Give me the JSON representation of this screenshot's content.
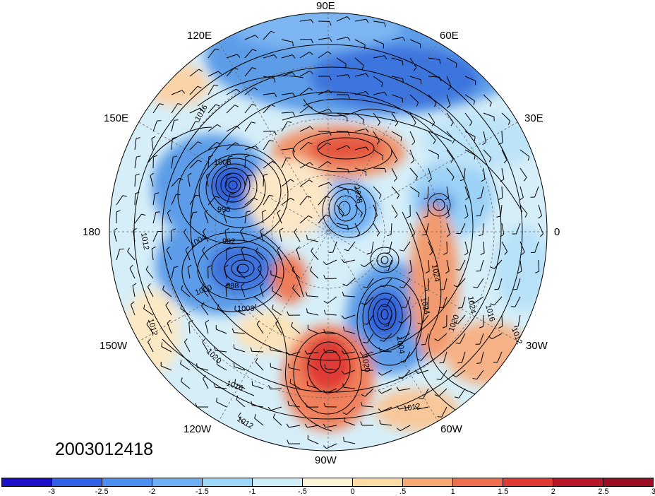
{
  "map": {
    "projection": "north-polar-stereographic",
    "longitude_labels": [
      "90E",
      "120E",
      "60E",
      "150E",
      "30E",
      "180",
      "0",
      "150W",
      "30W",
      "120W",
      "60W",
      "90W"
    ],
    "contour_labels": [
      "1016",
      "1008",
      "996",
      "1012",
      "992",
      "1004",
      "988",
      "1000",
      "1008",
      "1012",
      "1020",
      "1016",
      "1012",
      "1024",
      "1024",
      "1016",
      "1020",
      "1024",
      "1012",
      "1004",
      "1020",
      "1028",
      "1012"
    ]
  },
  "timestamp": "2003012418",
  "colorbar": {
    "colors": [
      "#1c10c8",
      "#2f62e6",
      "#4b8ff0",
      "#6fb0f4",
      "#9ed6f8",
      "#cfeefa",
      "#fdf5d8",
      "#fbdca4",
      "#f6a874",
      "#ec6f4f",
      "#e03a34",
      "#b8172a",
      "#9a0d22"
    ],
    "labels": [
      "-3",
      "-2.5",
      "-2",
      "-1.5",
      "-1",
      "-.5",
      "0",
      ".5",
      "1",
      "1.5",
      "2",
      "2.5",
      "3"
    ]
  }
}
